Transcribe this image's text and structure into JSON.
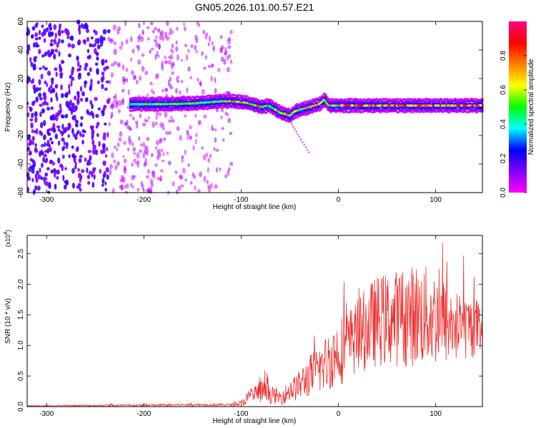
{
  "title": "GN05.2026.101.00.57.E21",
  "chart_data": [
    {
      "type": "heatmap",
      "name": "spectrogram",
      "xlabel": "Height of straight line (km)",
      "ylabel": "Frequency (Hz)",
      "xlim": [
        -320,
        148
      ],
      "ylim": [
        -60,
        60
      ],
      "xticks": [
        -300,
        -200,
        -100,
        0,
        100
      ],
      "yticks": [
        -60,
        -40,
        -20,
        0,
        20,
        40,
        60
      ],
      "colorbar": {
        "label": "Normalized spectral amplitude",
        "range": [
          0,
          1
        ],
        "ticks": [
          0.0,
          0.2,
          0.4,
          0.6,
          0.8
        ],
        "tick_labels": [
          "0.0",
          "0.2",
          "0.4",
          "0.6",
          "0.8"
        ],
        "colors": [
          "#ff00ff",
          "#8000ff",
          "#0000ff",
          "#00ffff",
          "#00ff00",
          "#ffff00",
          "#ff8000",
          "#ff0000",
          "#ff0080"
        ]
      },
      "noise_region": {
        "x": [
          -320,
          -110
        ],
        "y": [
          -60,
          60
        ]
      },
      "ridge": {
        "x": [
          -215,
          -180,
          -150,
          -120,
          -110,
          -95,
          -80,
          -72,
          -60,
          -50,
          -45,
          -30,
          -20,
          -15,
          -10,
          0,
          50,
          100,
          148
        ],
        "y": [
          2,
          2,
          2.5,
          4,
          4,
          3,
          0,
          1,
          -4,
          -6,
          -3,
          0,
          2,
          5,
          1,
          1,
          1,
          1,
          1
        ]
      }
    },
    {
      "type": "line",
      "name": "snr",
      "xlabel": "Height of straight line (km)",
      "ylabel": "SNR (10 * v/v)",
      "y_multiplier_label": "(x10",
      "y_multiplier_exp": "4",
      "xlim": [
        -320,
        148
      ],
      "ylim": [
        0,
        2.8
      ],
      "xticks": [
        -300,
        -200,
        -100,
        0,
        100
      ],
      "yticks": [
        0.0,
        0.5,
        1.0,
        1.5,
        2.0,
        2.5
      ],
      "ytick_labels": [
        "0.0",
        "0.5",
        "1.0",
        "1.5",
        "2.0",
        "2.5"
      ],
      "color": "#ee3030",
      "envelope": {
        "x": [
          -320,
          -200,
          -150,
          -110,
          -100,
          -95,
          -80,
          -70,
          -60,
          -50,
          -40,
          -30,
          -20,
          -10,
          0,
          10,
          20,
          30,
          40,
          60,
          80,
          100,
          120,
          148
        ],
        "mean": [
          0.01,
          0.02,
          0.03,
          0.03,
          0.05,
          0.12,
          0.25,
          0.2,
          0.15,
          0.25,
          0.35,
          0.5,
          0.6,
          0.75,
          0.9,
          1.0,
          1.15,
          1.3,
          1.4,
          1.45,
          1.5,
          1.45,
          1.3,
          1.3
        ],
        "spread": [
          0.01,
          0.02,
          0.02,
          0.02,
          0.05,
          0.1,
          0.2,
          0.15,
          0.12,
          0.18,
          0.25,
          0.35,
          0.4,
          0.5,
          0.55,
          0.6,
          0.6,
          0.7,
          0.75,
          0.8,
          0.85,
          0.8,
          0.6,
          0.45
        ]
      }
    }
  ]
}
